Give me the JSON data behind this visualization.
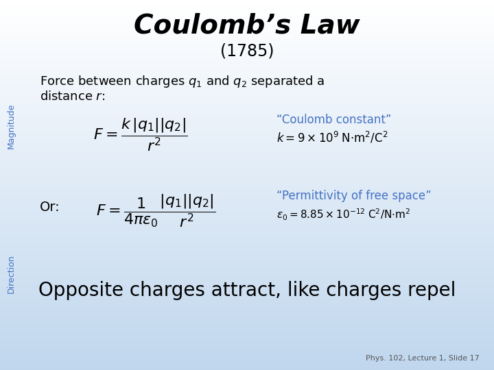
{
  "title": "Coulomb’s Law",
  "subtitle": "(1785)",
  "intro_line1": "Force between charges $q_1$ and $q_2$ separated a",
  "intro_line2": "distance $r$:",
  "formula1": "$F = \\dfrac{k\\,|q_1||q_2|}{r^2}$",
  "coulomb_label": "“Coulomb constant”",
  "coulomb_val": "$k = 9\\times10^9 \\;\\mathrm{N{\\cdot}m^2/C^2}$",
  "or_text": "Or:",
  "formula2": "$F = \\dfrac{1}{4\\pi\\varepsilon_0}\\dfrac{|q_1||q_2|}{r^2}$",
  "permittivity_label": "“Permittivity of free space”",
  "permittivity_val": "$\\varepsilon_0 = 8.85\\times10^{-12} \\;\\mathrm{C^2/N{\\cdot}m^2}$",
  "magnitude_label": "Magnitude",
  "direction_label": "Direction",
  "bottom_text": "Opposite charges attract, like charges repel",
  "footer": "Phys. 102, Lecture 1, Slide 17",
  "blue_label_color": "#4472c4",
  "rotated_label_color": "#4472c4",
  "formula_color": "#000000",
  "bottom_text_color": "#000000",
  "footer_color": "#555555"
}
